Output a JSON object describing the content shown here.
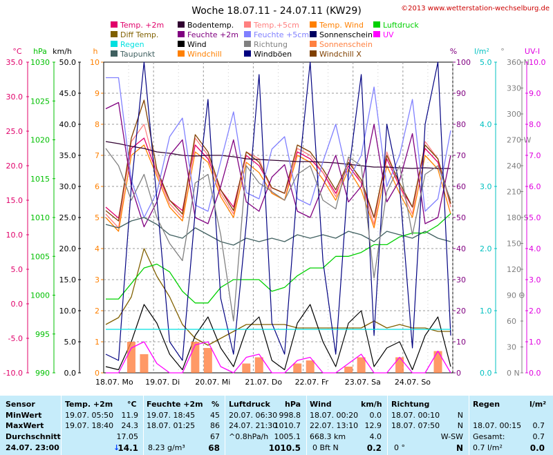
{
  "header": {
    "title": "Woche 18.07.11 - 24.07.11 (KW29)",
    "copyright": "©2013 www.wetterstation-wechselburg.de"
  },
  "legend": [
    {
      "label": "Temp. +2m",
      "color": "#e0006a"
    },
    {
      "label": "Diff Temp.",
      "color": "#806000"
    },
    {
      "label": "Regen",
      "color": "#00e0e0"
    },
    {
      "label": "Taupunkt",
      "color": "#406060"
    },
    {
      "label": "Bodentemp.",
      "color": "#300030"
    },
    {
      "label": "Feuchte +2m",
      "color": "#800080"
    },
    {
      "label": "Wind",
      "color": "#000000"
    },
    {
      "label": "Windchill",
      "color": "#ff8000"
    },
    {
      "label": "Temp.+5cm",
      "color": "#ff8080"
    },
    {
      "label": "Feuchte +5cm",
      "color": "#8080ff"
    },
    {
      "label": "Richtung",
      "color": "#808080"
    },
    {
      "label": "Windböen",
      "color": "#000080"
    },
    {
      "label": "Temp. Wind",
      "color": "#ff8000"
    },
    {
      "label": "Sonnenschein",
      "color": "#000060"
    },
    {
      "label": "Sonnenschein",
      "color": "#ff8040"
    },
    {
      "label": "Windchill X",
      "color": "#804000"
    },
    {
      "label": "Luftdruck",
      "color": "#00d000"
    },
    {
      "label": "UV",
      "color": "#ff00ff"
    }
  ],
  "chart_data": {
    "type": "line",
    "x_labels": [
      "18.07. Mo",
      "19.07. Di",
      "20.07. Mi",
      "21.07. Do",
      "22.07. Fr",
      "23.07. Sa",
      "24.07. So"
    ],
    "axes": [
      {
        "unit": "°C",
        "color": "#e0006a",
        "ticks": [
          "35.0",
          "30.0",
          "25.0",
          "20.0",
          "15.0",
          "10.0",
          "5.0",
          "0.0",
          "-5.0",
          "-10.0"
        ]
      },
      {
        "unit": "hPa",
        "color": "#00c000",
        "ticks": [
          "1030",
          "1025",
          "1020",
          "1015",
          "1010",
          "1005",
          "1000",
          "995",
          "990"
        ]
      },
      {
        "unit": "km/h",
        "color": "#000000",
        "ticks": [
          "50.0",
          "45.0",
          "40.0",
          "35.0",
          "30.0",
          "25.0",
          "20.0",
          "15.0",
          "10.0",
          "5.0",
          "0.0"
        ]
      },
      {
        "unit": "h",
        "color": "#ff8000",
        "ticks": [
          "10",
          "9",
          "8",
          "7",
          "6",
          "5",
          "4",
          "3",
          "2",
          "1",
          "0"
        ]
      },
      {
        "unit": "%",
        "color": "#800080",
        "ticks": [
          "100",
          "90",
          "80",
          "70",
          "60",
          "50",
          "40",
          "30",
          "20",
          "10",
          "0"
        ]
      },
      {
        "unit": "l/m²",
        "color": "#00c0c0",
        "ticks": [
          "5.0",
          "4.0",
          "3.0",
          "2.0",
          "1.0",
          "0.0"
        ]
      },
      {
        "unit": "°",
        "color": "#808080",
        "ticks": [
          "360 N",
          "330",
          "300",
          "270 W",
          "240",
          "210",
          "180 S",
          "150",
          "120",
          "90 O",
          "60",
          "30",
          "0 N"
        ]
      },
      {
        "unit": "UV-I",
        "color": "#e000e0",
        "ticks": [
          "10.0",
          "9.0",
          "8.0",
          "7.0",
          "6.0",
          "5.0",
          "4.0",
          "3.0",
          "2.0",
          "1.0",
          "0.0"
        ]
      }
    ],
    "series": [
      {
        "name": "Temp. +2m",
        "color": "#e0006a",
        "values": [
          14.0,
          12.4,
          22.5,
          24.0,
          19.0,
          15.0,
          13.5,
          23.0,
          21.0,
          16.5,
          14.0,
          21.5,
          20.0,
          16.8,
          16.0,
          22.0,
          21.0,
          19.0,
          16.0,
          20.0,
          17.5,
          12.5,
          21.0,
          17.0,
          14.0,
          22.5,
          20.5,
          14.5
        ]
      },
      {
        "name": "Temp.+5cm",
        "color": "#ff8080",
        "values": [
          13.0,
          11.0,
          23.5,
          26.0,
          19.0,
          14.5,
          12.5,
          24.0,
          21.5,
          16.0,
          13.0,
          22.0,
          21.0,
          16.2,
          15.0,
          22.5,
          21.5,
          19.0,
          15.5,
          21.0,
          17.5,
          11.5,
          22.0,
          17.0,
          13.0,
          23.5,
          21.0,
          14.0
        ]
      },
      {
        "name": "Windchill",
        "color": "#ff8000",
        "values": [
          12.5,
          10.5,
          21.5,
          23.0,
          18.5,
          14.0,
          12.0,
          22.0,
          20.5,
          15.5,
          12.5,
          20.5,
          19.0,
          16.0,
          15.0,
          21.5,
          20.5,
          18.0,
          15.0,
          19.5,
          16.5,
          11.0,
          20.0,
          16.0,
          12.5,
          21.5,
          19.5,
          13.0
        ]
      },
      {
        "name": "Windchill X",
        "color": "#804000",
        "values": [
          13.5,
          12.0,
          24.0,
          29.5,
          19.5,
          15.0,
          13.0,
          24.5,
          22.0,
          16.5,
          13.5,
          22.0,
          20.5,
          16.8,
          16.0,
          23.0,
          22.0,
          19.5,
          16.5,
          20.5,
          18.0,
          12.5,
          21.5,
          17.5,
          14.0,
          23.0,
          21.0,
          14.5
        ]
      },
      {
        "name": "Bodentemp.",
        "color": "#300030",
        "values": [
          23.5,
          23.2,
          22.8,
          22.5,
          22.0,
          21.8,
          21.5,
          21.4,
          21.5,
          21.5,
          21.3,
          21.0,
          20.9,
          20.8,
          20.7,
          20.6,
          20.6,
          20.5,
          20.4,
          20.2,
          20.0,
          19.8,
          19.8,
          19.7,
          19.6,
          19.7,
          19.6,
          19.6
        ]
      },
      {
        "name": "Feuchte +2m",
        "color": "#800080",
        "values": [
          85,
          87,
          60,
          47,
          55,
          70,
          75,
          50,
          48,
          60,
          75,
          55,
          52,
          63,
          67,
          52,
          50,
          60,
          70,
          55,
          60,
          80,
          55,
          62,
          77,
          48,
          50,
          70
        ]
      },
      {
        "name": "Feuchte +5cm",
        "color": "#8080ff",
        "values": [
          95,
          95,
          62,
          50,
          58,
          76,
          82,
          54,
          52,
          68,
          84,
          58,
          56,
          72,
          76,
          56,
          54,
          68,
          80,
          62,
          70,
          92,
          60,
          70,
          88,
          52,
          56,
          78
        ]
      },
      {
        "name": "Taupunkt",
        "color": "#406060",
        "values": [
          11.5,
          11.0,
          12.0,
          12.5,
          11.5,
          10.0,
          9.5,
          11.0,
          10.0,
          9.0,
          8.5,
          9.5,
          9.0,
          9.5,
          9.0,
          10.0,
          9.5,
          10.0,
          9.5,
          10.5,
          10.0,
          9.0,
          10.5,
          10.0,
          9.5,
          10.5,
          9.5,
          9.0
        ]
      },
      {
        "name": "Diff Temp.",
        "color": "#806000",
        "values": [
          -3.0,
          -2.0,
          1.0,
          8.0,
          4.0,
          1.0,
          -3.0,
          -5.0,
          -6.0,
          -5.0,
          -4.0,
          -3.0,
          -3.0,
          -3.0,
          -3.0,
          -3.5,
          -3.5,
          -3.5,
          -3.5,
          -3.5,
          -3.5,
          -2.5,
          -3.5,
          -3.0,
          -3.5,
          -3.5,
          -4.0,
          -4.0
        ]
      },
      {
        "name": "Luftdruck",
        "color": "#00d000",
        "values": [
          999.5,
          999.5,
          1001.5,
          1003.5,
          1004.0,
          1003.0,
          1000.5,
          999.0,
          999.0,
          1001.0,
          1002.0,
          1002.0,
          1002.0,
          1000.5,
          1001.0,
          1002.5,
          1003.5,
          1003.5,
          1005.0,
          1005.0,
          1005.5,
          1006.5,
          1006.5,
          1007.5,
          1008.0,
          1008.0,
          1009.0,
          1010.5
        ]
      },
      {
        "name": "Wind",
        "color": "#000000",
        "values": [
          1.0,
          0.5,
          5.0,
          11.0,
          8.0,
          3.0,
          0.5,
          6.0,
          9.0,
          4.0,
          1.0,
          7.0,
          9.0,
          2.0,
          0.5,
          8.0,
          11.0,
          5.0,
          1.0,
          8.0,
          10.0,
          1.0,
          4.0,
          5.0,
          0.5,
          6.0,
          9.0,
          1.0
        ]
      },
      {
        "name": "Windböen",
        "color": "#000080",
        "values": [
          3.0,
          2.0,
          30.0,
          50.0,
          28.0,
          5.0,
          2.0,
          26.0,
          44.0,
          12.0,
          3.0,
          24.0,
          48.0,
          8.0,
          3.0,
          30.0,
          50.0,
          18.0,
          3.0,
          32.0,
          48.0,
          6.0,
          40.0,
          30.0,
          4.0,
          40.0,
          50.0,
          6.0
        ]
      },
      {
        "name": "Richtung",
        "color": "#808080",
        "values": [
          260,
          240,
          200,
          230,
          180,
          150,
          130,
          220,
          230,
          160,
          60,
          240,
          220,
          210,
          200,
          230,
          240,
          200,
          190,
          250,
          240,
          110,
          210,
          240,
          160,
          230,
          240,
          200
        ]
      },
      {
        "name": "Sonnenschein",
        "color": "#ff8040",
        "type": "bar",
        "values": [
          0,
          0,
          1.0,
          0.6,
          0,
          0,
          0,
          1.0,
          0.8,
          0,
          0,
          0.3,
          0.5,
          0,
          0,
          0.3,
          0.4,
          0,
          0,
          0.2,
          0.5,
          0,
          0,
          0.5,
          0,
          0,
          0.7,
          0
        ]
      },
      {
        "name": "UV",
        "color": "#ff00ff",
        "values": [
          0,
          0,
          0.8,
          1.0,
          0.3,
          0,
          0,
          0.9,
          1.0,
          0.2,
          0,
          0.5,
          0.6,
          0,
          0,
          0.4,
          0.5,
          0,
          0,
          0.3,
          0.6,
          0,
          0,
          0.5,
          0,
          0,
          0.7,
          0
        ]
      },
      {
        "name": "Regen",
        "color": "#00e0e0",
        "values": [
          0.7,
          0.7,
          0.7,
          0.7,
          0.7,
          0.7,
          0.7,
          0.7,
          0.7,
          0.7,
          0.7,
          0.7,
          0.7,
          0.7,
          0.7,
          0.7,
          0.7,
          0.7,
          0.7,
          0.7,
          0.7,
          0.7,
          0.7,
          0.7,
          0.7,
          0.7,
          0.7,
          0.7
        ]
      }
    ]
  },
  "footer": {
    "headers": [
      "Sensor",
      "Temp. +2m",
      "°C",
      "Feuchte +2m",
      "%",
      "Luftdruck",
      "hPa",
      "Wind",
      "km/h",
      "Richtung",
      "Regen",
      "l/m²"
    ],
    "row_labels": [
      "MinWert",
      "MaxWert",
      "Durchschnitt",
      "24.07. 23:00"
    ],
    "temp": [
      [
        "19.07. 05:50",
        "11.9"
      ],
      [
        "19.07. 18:40",
        "24.3"
      ],
      [
        "",
        "17.05"
      ],
      [
        "↓",
        "14.1"
      ]
    ],
    "feuchte": [
      [
        "19.07. 18:45",
        "45"
      ],
      [
        "18.07. 01:25",
        "86"
      ],
      [
        "",
        "67"
      ],
      [
        "8.23 g/m³",
        "68"
      ]
    ],
    "luftdruck": [
      [
        "20.07. 06:30",
        "998.8"
      ],
      [
        "24.07. 21:30",
        "1010.7"
      ],
      [
        "^0.8hPa/h",
        "1005.1"
      ],
      [
        "",
        "1010.5"
      ]
    ],
    "wind": [
      [
        "18.07. 00:20",
        "0.0"
      ],
      [
        "22.07. 13:10",
        "12.9"
      ],
      [
        "668.3 km",
        "4.0"
      ],
      [
        "0 Bft N",
        "0.2"
      ]
    ],
    "richtung": [
      [
        "18.07. 00:10",
        "N"
      ],
      [
        "18.07. 07:50",
        "N"
      ],
      [
        "",
        "W-SW"
      ],
      [
        "0 °",
        "N"
      ]
    ],
    "regen": [
      [
        "",
        ""
      ],
      [
        "18.07. 00:15",
        "0.7"
      ],
      [
        "Gesamt:",
        "0.7"
      ],
      [
        "0.7 l/m²",
        "0.0"
      ]
    ]
  }
}
